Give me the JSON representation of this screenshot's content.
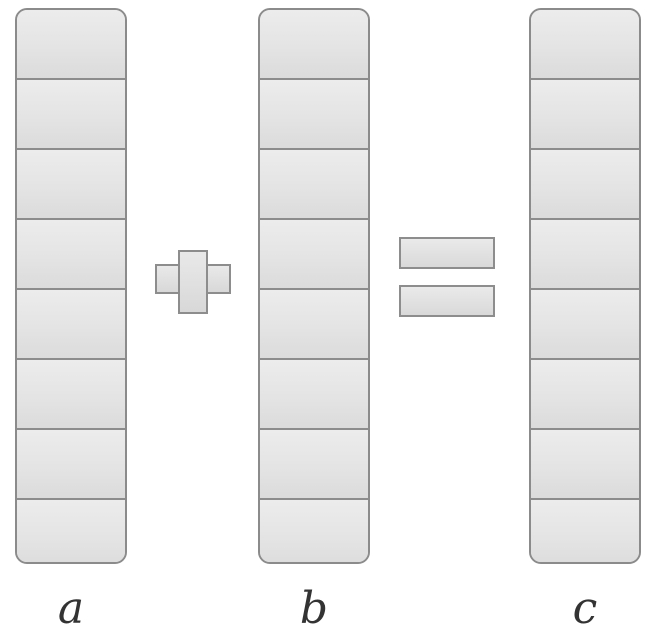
{
  "vectors": [
    {
      "id": "a",
      "label": "a",
      "cells": 8
    },
    {
      "id": "b",
      "label": "b",
      "cells": 8
    },
    {
      "id": "c",
      "label": "c",
      "cells": 8
    }
  ],
  "operators": [
    "plus",
    "equals"
  ],
  "colors": {
    "cell_fill": "#e6e6e6",
    "cell_border": "#8c8c8c",
    "label_text": "#333333"
  }
}
